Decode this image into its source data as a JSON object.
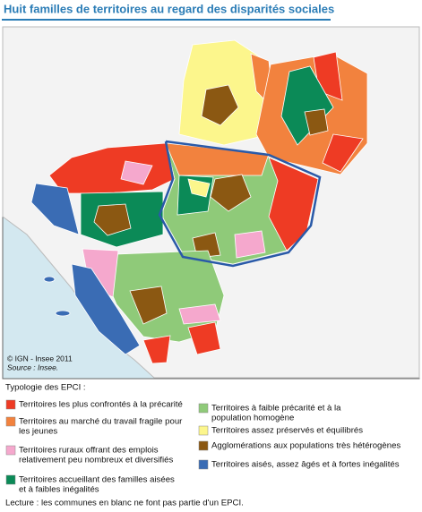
{
  "header": {
    "title": "Huit familles de territoires au regard des disparités sociales"
  },
  "map": {
    "credits": [
      "© IGN - Insee 2011",
      "Source : Insee."
    ]
  },
  "legend": {
    "title": "Typologie des EPCI :",
    "items": [
      {
        "color": "#ee3b24",
        "lines": [
          "Territoires les plus confrontés à la précarité"
        ]
      },
      {
        "color": "#f2823e",
        "lines": [
          "Territoires au marché du travail fragile pour",
          "les jeunes"
        ]
      },
      {
        "color": "#f5a8cd",
        "lines": [
          "Territoires ruraux offrant des emplois",
          "relativement peu nombreux et diversifiés"
        ]
      },
      {
        "color": "#0b8a57",
        "lines": [
          "Territoires accueillant des familles aisées",
          "et à faibles inégalités"
        ]
      },
      {
        "color": "#8fca79",
        "lines": [
          "Territoires à faible précarité et à la",
          "population homogène"
        ]
      },
      {
        "color": "#fcf68c",
        "lines": [
          "Territoires assez préservés et équilibrés"
        ]
      },
      {
        "color": "#8b5812",
        "lines": [
          "Agglomérations aux populations très hétérogènes"
        ]
      },
      {
        "color": "#3a6cb4",
        "lines": [
          "Territoires aisés, assez âgés et à fortes inégalités"
        ]
      }
    ]
  },
  "footnote": "Lecture : les communes en blanc ne font pas partie d'un EPCI."
}
